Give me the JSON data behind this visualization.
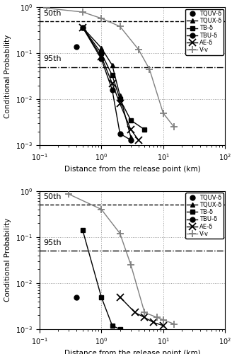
{
  "plot1": {
    "xlabel": "Distance from the release point (km)",
    "ylabel": "Conditional Probability",
    "xlim": [
      0.1,
      100
    ],
    "ylim": [
      0.001,
      1.0
    ],
    "hline_50th": 0.5,
    "hline_95th": 0.05,
    "annotation_50th": [
      0.115,
      0.62
    ],
    "annotation_95th": [
      0.115,
      0.063
    ],
    "series": [
      {
        "label": "TQUV-δ",
        "marker": "o",
        "x": [
          0.4
        ],
        "y": [
          0.14
        ],
        "linestyle": "none",
        "color": "black"
      },
      {
        "label": "TQUX-δ",
        "marker": "^",
        "x": [
          0.5,
          1.0,
          1.5,
          2.0,
          3.0
        ],
        "y": [
          0.36,
          0.13,
          0.055,
          0.012,
          0.0015
        ],
        "linestyle": "-",
        "color": "black"
      },
      {
        "label": "TB-δ",
        "marker": "s",
        "x": [
          0.5,
          1.0,
          1.5,
          2.0,
          3.0,
          5.0
        ],
        "y": [
          0.36,
          0.1,
          0.033,
          0.01,
          0.0035,
          0.0022
        ],
        "linestyle": "-",
        "color": "black"
      },
      {
        "label": "TBU-δ",
        "marker": "o",
        "x": [
          0.5,
          1.0,
          1.5,
          2.0,
          3.0
        ],
        "y": [
          0.36,
          0.075,
          0.016,
          0.0018,
          0.0013
        ],
        "linestyle": "-",
        "color": "black",
        "filled": true
      },
      {
        "label": "AE-δ",
        "marker": "x",
        "x": [
          0.5,
          1.0,
          1.5,
          2.0,
          3.0,
          4.0
        ],
        "y": [
          0.36,
          0.085,
          0.022,
          0.008,
          0.0022,
          0.0013
        ],
        "linestyle": "-",
        "color": "black"
      },
      {
        "label": "V-v",
        "marker": "+",
        "x": [
          0.13,
          0.5,
          1.0,
          2.0,
          4.0,
          6.0,
          10.0,
          15.0
        ],
        "y": [
          0.95,
          0.78,
          0.57,
          0.38,
          0.12,
          0.045,
          0.005,
          0.0025
        ],
        "linestyle": "-",
        "color": "gray"
      }
    ]
  },
  "plot2": {
    "xlabel": "Distance from the release point (km)",
    "ylabel": "Conditional Probability",
    "xlim": [
      0.1,
      100
    ],
    "ylim": [
      0.001,
      1.0
    ],
    "hline_50th": 0.5,
    "hline_95th": 0.05,
    "annotation_50th": [
      0.115,
      0.62
    ],
    "annotation_95th": [
      0.115,
      0.063
    ],
    "series": [
      {
        "label": "TQUV-δ",
        "marker": "o",
        "x": [
          0.4
        ],
        "y": [
          0.005
        ],
        "linestyle": "none",
        "color": "black",
        "filled": true
      },
      {
        "label": "TQUX-δ",
        "marker": "^",
        "x": [],
        "y": [],
        "linestyle": "-",
        "color": "black"
      },
      {
        "label": "TB-δ",
        "marker": "s",
        "x": [
          0.5,
          1.0,
          1.5,
          2.0
        ],
        "y": [
          0.14,
          0.005,
          0.0012,
          0.001
        ],
        "linestyle": "-",
        "color": "black"
      },
      {
        "label": "TBU-δ",
        "marker": "o",
        "x": [],
        "y": [],
        "linestyle": "-",
        "color": "black",
        "filled": true
      },
      {
        "label": "AE-δ",
        "marker": "x",
        "x": [
          2.0,
          3.5,
          5.0,
          7.0,
          10.0
        ],
        "y": [
          0.005,
          0.0023,
          0.0018,
          0.0014,
          0.0012
        ],
        "linestyle": "-",
        "color": "black"
      },
      {
        "label": "V-v",
        "marker": "+",
        "x": [
          0.3,
          1.0,
          2.0,
          3.0,
          5.0,
          8.0,
          10.0,
          15.0
        ],
        "y": [
          0.85,
          0.4,
          0.12,
          0.025,
          0.0023,
          0.0018,
          0.0016,
          0.0013
        ],
        "linestyle": "-",
        "color": "gray"
      }
    ]
  },
  "markersize": 5,
  "markersize_cross": 7,
  "linewidth": 1.0,
  "fontsize_label": 7.5,
  "fontsize_tick": 7,
  "fontsize_legend": 6,
  "fontsize_annotation": 8
}
